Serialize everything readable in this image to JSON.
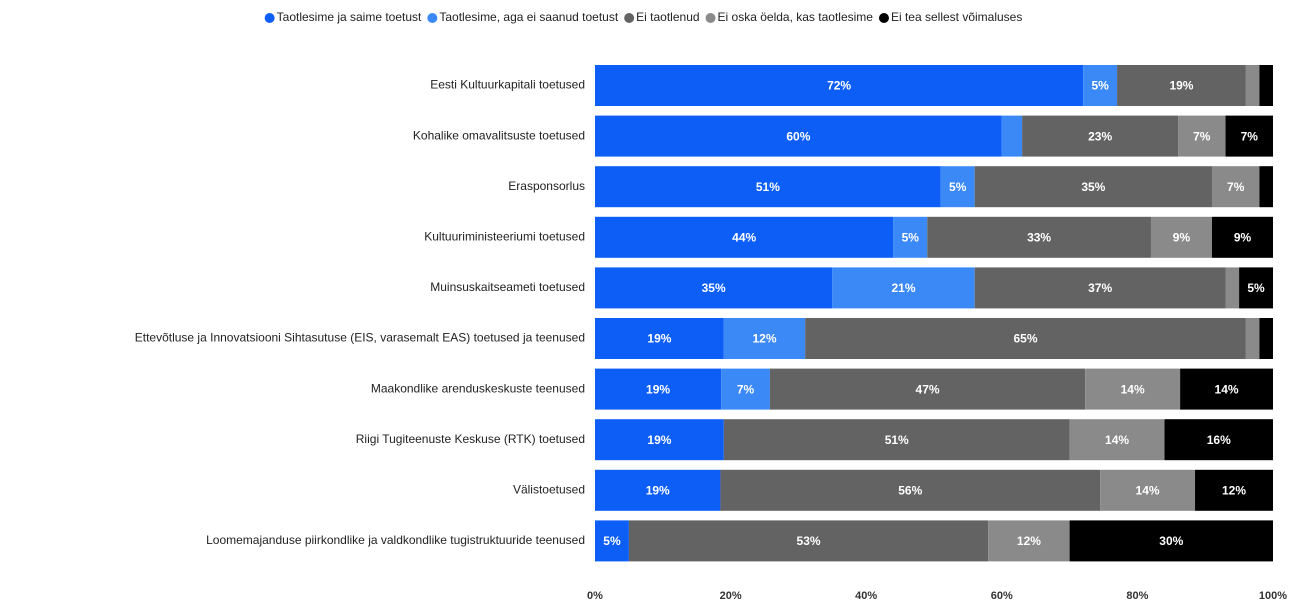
{
  "chart_data": {
    "type": "stacked-bar-horizontal",
    "categories": [
      "Eesti Kultuurkapitali toetused",
      "Kohalike omavalitsuste toetused",
      "Erasponsorlus",
      "Kultuuriministeeriumi toetused",
      "Muinsuskaitseameti toetused",
      "Ettevõtluse ja Innovatsiooni Sihtasutuse (EIS, varasemalt EAS) toetused ja teenused",
      "Maakondlike arenduskeskuste teenused",
      "Riigi Tugiteenuste Keskuse (RTK) toetused",
      "Välistoetused",
      "Loomemajanduse piirkondlike ja valdkondlike tugistruktuuride teenused"
    ],
    "series": [
      {
        "name": "Taotlesime ja saime toetust",
        "color": "#0d5ef6",
        "values": [
          72,
          60,
          51,
          44,
          35,
          19,
          18.6,
          19,
          18.5,
          5
        ],
        "value_labels": [
          "72%",
          "60%",
          "51%",
          "44%",
          "35%",
          "19%",
          "19%",
          "19%",
          "19%",
          "5%"
        ]
      },
      {
        "name": "Taotlesime, aga ei saanud toetust",
        "color": "#3b89f7",
        "values": [
          5,
          3,
          5,
          5,
          21,
          12,
          7.2,
          0,
          0,
          0
        ],
        "value_labels": [
          "5%",
          null,
          "5%",
          "5%",
          "21%",
          "12%",
          "7%",
          null,
          null,
          null
        ]
      },
      {
        "name": "Ei taotlenud",
        "color": "#636363",
        "values": [
          19,
          23,
          35,
          33,
          37,
          65,
          46.5,
          51,
          56,
          53
        ],
        "value_labels": [
          "19%",
          "23%",
          "35%",
          "33%",
          "37%",
          "65%",
          "47%",
          "51%",
          "56%",
          "53%"
        ]
      },
      {
        "name": "Ei oska öelda, kas taotlesime",
        "color": "#8a8a8a",
        "values": [
          2,
          7,
          7,
          9,
          2,
          2,
          14,
          14,
          14,
          12
        ],
        "value_labels": [
          null,
          "7%",
          "7%",
          "9%",
          null,
          null,
          "14%",
          "14%",
          "14%",
          "12%"
        ]
      },
      {
        "name": "Ei tea sellest võimaluses",
        "color": "#000000",
        "values": [
          2,
          7,
          2,
          9,
          5,
          2,
          13.7,
          16,
          11.5,
          30
        ],
        "value_labels": [
          null,
          "7%",
          null,
          "9%",
          "5%",
          null,
          "14%",
          "16%",
          "12%",
          "30%"
        ]
      }
    ],
    "xlim": [
      0,
      100
    ],
    "xticks": [
      {
        "value": 0,
        "label": "0%"
      },
      {
        "value": 20,
        "label": "20%"
      },
      {
        "value": 40,
        "label": "40%"
      },
      {
        "value": 60,
        "label": "60%"
      },
      {
        "value": 80,
        "label": "80%"
      },
      {
        "value": 100,
        "label": "100%"
      }
    ],
    "legend": "top"
  }
}
